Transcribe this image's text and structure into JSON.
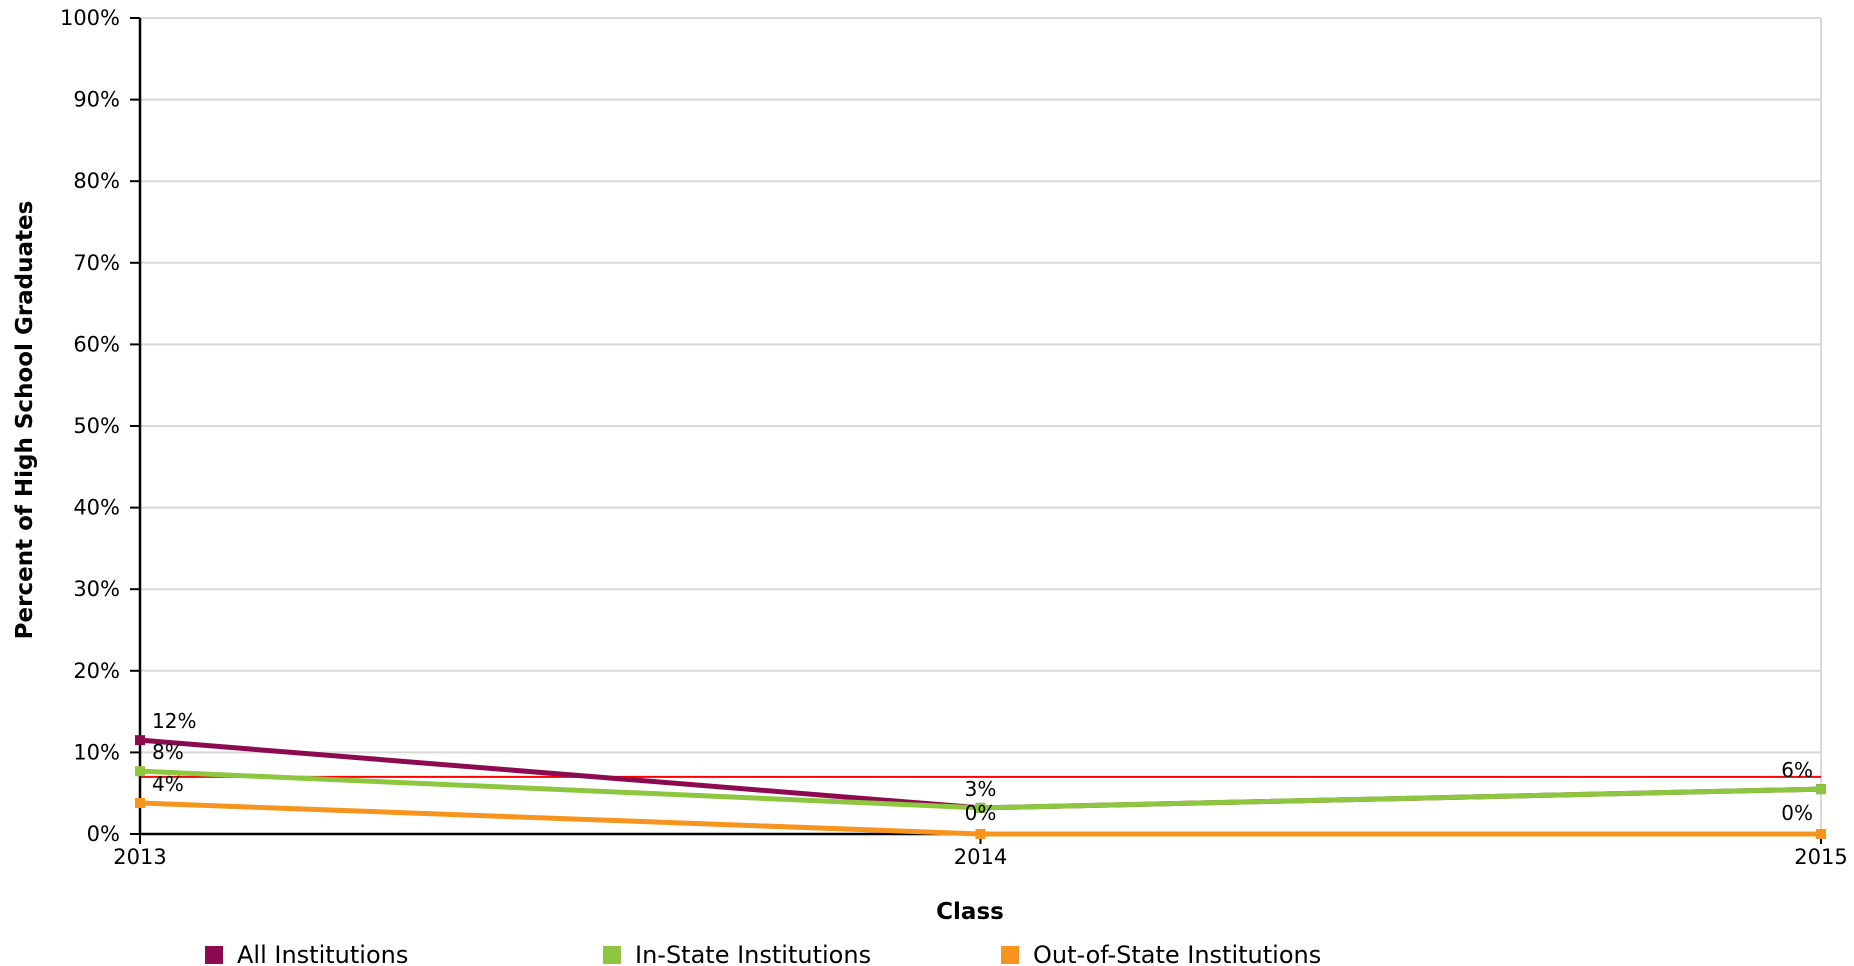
{
  "chart_data": {
    "type": "line",
    "x": [
      "2013",
      "2014",
      "2015"
    ],
    "xlabel": "Class",
    "ylabel": "Percent of High School Graduates",
    "ylim": [
      0,
      100
    ],
    "ytick_values": [
      0,
      10,
      20,
      30,
      40,
      50,
      60,
      70,
      80,
      90,
      100
    ],
    "ytick_labels": [
      "0%",
      "10%",
      "20%",
      "30%",
      "40%",
      "50%",
      "60%",
      "70%",
      "80%",
      "90%",
      "100%"
    ],
    "grid": true,
    "legend_position": "bottom",
    "reference_line": {
      "value": 7,
      "color": "#ff0000"
    },
    "series": [
      {
        "name": "All Institutions",
        "color": "#8c0a50",
        "values": [
          11.5,
          3.2,
          5.5
        ],
        "labels": [
          "12%",
          "",
          ""
        ]
      },
      {
        "name": "In-State Institutions",
        "color": "#8dc63f",
        "values": [
          7.7,
          3.2,
          5.5
        ],
        "labels": [
          "8%",
          "3%",
          "6%"
        ]
      },
      {
        "name": "Out-of-State Institutions",
        "color": "#f7941d",
        "values": [
          3.8,
          0,
          0
        ],
        "labels": [
          "4%",
          "0%",
          "0%"
        ]
      }
    ]
  }
}
